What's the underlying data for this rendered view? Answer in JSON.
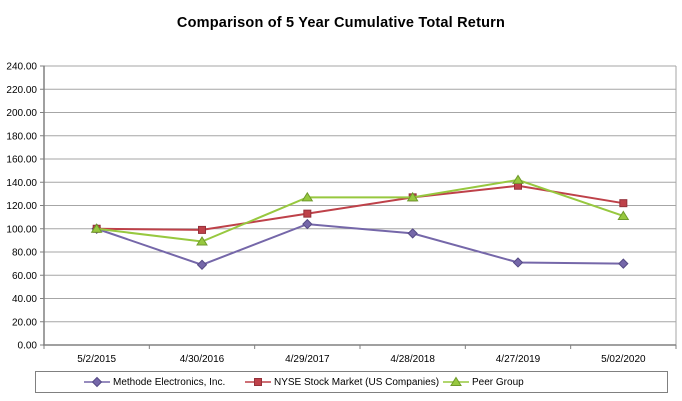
{
  "title": "Comparison of 5 Year Cumulative Total Return",
  "chart_data": {
    "type": "line",
    "title": "Comparison of 5 Year Cumulative Total Return",
    "x": [
      "5/2/2015",
      "4/30/2016",
      "4/29/2017",
      "4/28/2018",
      "4/27/2019",
      "5/02/2020"
    ],
    "series": [
      {
        "name": "Methode Electronics, Inc.",
        "marker": "diamond",
        "color": "#7567A9",
        "edge": "#554A85",
        "values": [
          100,
          69,
          104,
          96,
          71,
          70
        ]
      },
      {
        "name": "NYSE Stock Market (US Companies)",
        "marker": "square",
        "color": "#BE4149",
        "edge": "#94313A",
        "values": [
          100,
          99,
          113,
          127,
          137,
          122
        ]
      },
      {
        "name": "Peer Group",
        "marker": "triangle",
        "color": "#97C83F",
        "edge": "#6F9A2C",
        "values": [
          100,
          89,
          127,
          127,
          142,
          111
        ]
      }
    ],
    "xlabel": "",
    "ylabel": "",
    "ylim": [
      0,
      240
    ],
    "ytick_step": 20,
    "ytick_format": "two-decimals",
    "grid": "horizontal",
    "legend_position": "bottom",
    "plot_bg": "#ffffff",
    "gridline_color": "#A6A6A6",
    "axis_color": "#808080"
  }
}
